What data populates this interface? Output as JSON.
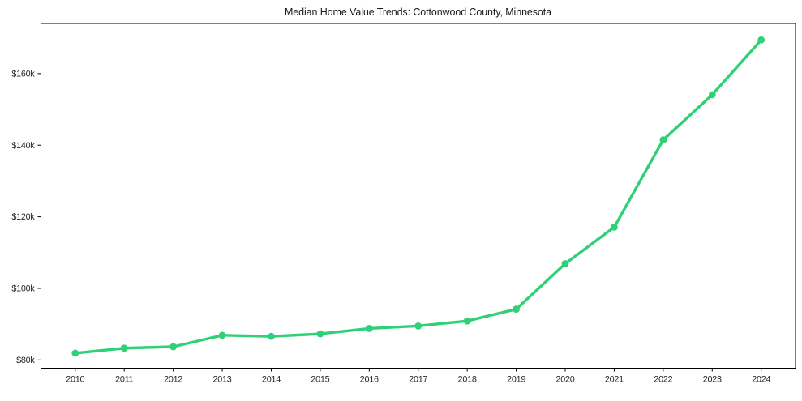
{
  "page": {
    "background": "#ffffff"
  },
  "chart_data": {
    "type": "line",
    "title": "Median Home Value Trends: Cottonwood County, Minnesota",
    "x": [
      2010,
      2011,
      2012,
      2013,
      2014,
      2015,
      2016,
      2017,
      2018,
      2019,
      2020,
      2021,
      2022,
      2023,
      2024
    ],
    "x_tick_labels": [
      "2010",
      "2011",
      "2012",
      "2013",
      "2014",
      "2015",
      "2016",
      "2017",
      "2018",
      "2019",
      "2020",
      "2021",
      "2022",
      "2023",
      "2024"
    ],
    "series": [
      {
        "name": "Median Home Value",
        "values": [
          81900,
          83300,
          83700,
          86900,
          86600,
          87300,
          88800,
          89500,
          90900,
          94200,
          106900,
          117100,
          141500,
          154100,
          169400
        ]
      }
    ],
    "y_ticks": [
      {
        "value": 80000,
        "label": "$80k"
      },
      {
        "value": 100000,
        "label": "$100k"
      },
      {
        "value": 120000,
        "label": "$120k"
      },
      {
        "value": 140000,
        "label": "$140k"
      },
      {
        "value": 160000,
        "label": "$160k"
      }
    ],
    "xlim": [
      2009.3,
      2024.7
    ],
    "ylim": [
      77700,
      174000
    ],
    "grid": false,
    "legend": "none",
    "line_color": "#2fd076",
    "marker_color": "#2fd076",
    "frame_color": "#000000",
    "tick_color": "#000000",
    "text_color": "#262626"
  }
}
